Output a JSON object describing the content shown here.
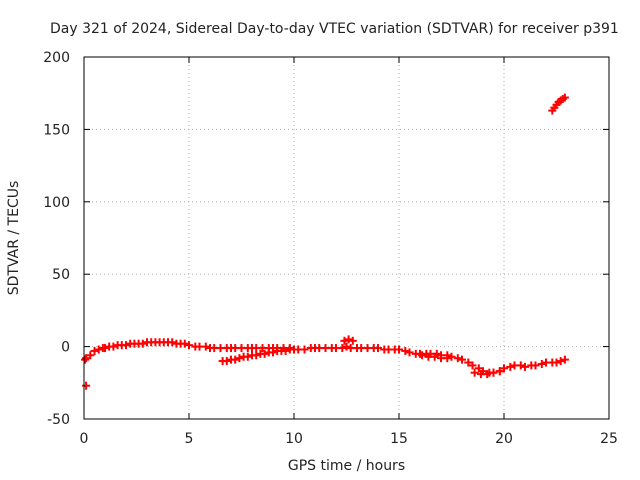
{
  "chart_data": {
    "type": "scatter",
    "title": "Day 321 of 2024, Sidereal Day-to-day VTEC variation (SDTVAR) for receiver p391",
    "xlabel": "GPS time / hours",
    "ylabel": "SDTVAR / TECUs",
    "xlim": [
      0,
      25
    ],
    "ylim": [
      -50,
      200
    ],
    "xticks": [
      0,
      5,
      10,
      15,
      20,
      25
    ],
    "yticks": [
      -50,
      0,
      50,
      100,
      150,
      200
    ],
    "grid": true,
    "marker": "+",
    "color": "#ff0000",
    "series": [
      {
        "name": "SDTVAR",
        "x": [
          0.05,
          0.1,
          0.1,
          0.3,
          0.5,
          0.7,
          0.9,
          1.0,
          1.2,
          1.4,
          1.6,
          1.8,
          2.0,
          2.2,
          2.4,
          2.6,
          2.8,
          3.0,
          3.2,
          3.4,
          3.6,
          3.8,
          4.0,
          4.2,
          4.4,
          4.6,
          4.8,
          5.0,
          5.3,
          5.5,
          5.8,
          6.0,
          6.2,
          6.5,
          6.8,
          7.0,
          7.2,
          7.5,
          7.8,
          8.0,
          8.2,
          8.5,
          8.8,
          9.0,
          9.2,
          9.5,
          9.8,
          10.0,
          10.2,
          10.5,
          10.8,
          11.0,
          11.2,
          11.5,
          11.8,
          12.0,
          12.3,
          12.5,
          12.7,
          13.0,
          13.2,
          13.5,
          13.8,
          14.0,
          14.3,
          14.5,
          14.8,
          15.0,
          15.3,
          15.5,
          15.8,
          16.0,
          16.3,
          16.5,
          16.8,
          17.0,
          17.3,
          17.5,
          17.8,
          18.0,
          18.3,
          18.5,
          18.8,
          19.0,
          19.3,
          19.5,
          19.8,
          20.0,
          20.3,
          20.5,
          20.8,
          21.0,
          21.3,
          21.5,
          21.8,
          22.0,
          22.3,
          22.5,
          22.7,
          22.9,
          6.6,
          6.8,
          7.0,
          7.2,
          7.4,
          7.6,
          7.8,
          8.0,
          8.2,
          8.4,
          8.6,
          8.8,
          9.0,
          9.2,
          9.4,
          9.6,
          9.8,
          10.0,
          16.1,
          16.4,
          16.7,
          17.0,
          17.3,
          18.6,
          18.9,
          19.2,
          19.5,
          19.8,
          12.4,
          12.6,
          12.8,
          15.0,
          22.3,
          22.4,
          22.5,
          22.6,
          22.7,
          22.8,
          22.9
        ],
        "y": [
          -9,
          -27,
          -8,
          -6,
          -3,
          -2,
          -1,
          -1,
          0,
          0,
          1,
          1,
          1,
          2,
          2,
          2,
          2,
          3,
          3,
          3,
          3,
          3,
          3,
          3,
          2,
          2,
          2,
          1,
          0,
          0,
          0,
          -1,
          -1,
          -1,
          -1,
          -1,
          -1,
          -1,
          -1,
          -1,
          -1,
          -1,
          -1,
          -1,
          -1,
          -1,
          -1,
          -2,
          -2,
          -2,
          -1,
          -1,
          -1,
          -1,
          -1,
          -1,
          -1,
          0,
          -1,
          -1,
          -1,
          -1,
          -1,
          -1,
          -2,
          -2,
          -2,
          -2,
          -3,
          -4,
          -5,
          -5,
          -5,
          -5,
          -5,
          -6,
          -6,
          -7,
          -8,
          -9,
          -11,
          -13,
          -15,
          -17,
          -18,
          -18,
          -17,
          -15,
          -14,
          -13,
          -13,
          -14,
          -13,
          -13,
          -12,
          -11,
          -11,
          -11,
          -10,
          -9,
          -10,
          -10,
          -9,
          -9,
          -8,
          -7,
          -7,
          -6,
          -6,
          -5,
          -5,
          -4,
          -4,
          -3,
          -3,
          -3,
          -2,
          -2,
          -6,
          -7,
          -7,
          -8,
          -8,
          -18,
          -19,
          -19,
          -18,
          -17,
          4,
          5,
          4,
          -2,
          163,
          165,
          167,
          169,
          170,
          171,
          172
        ]
      }
    ]
  }
}
